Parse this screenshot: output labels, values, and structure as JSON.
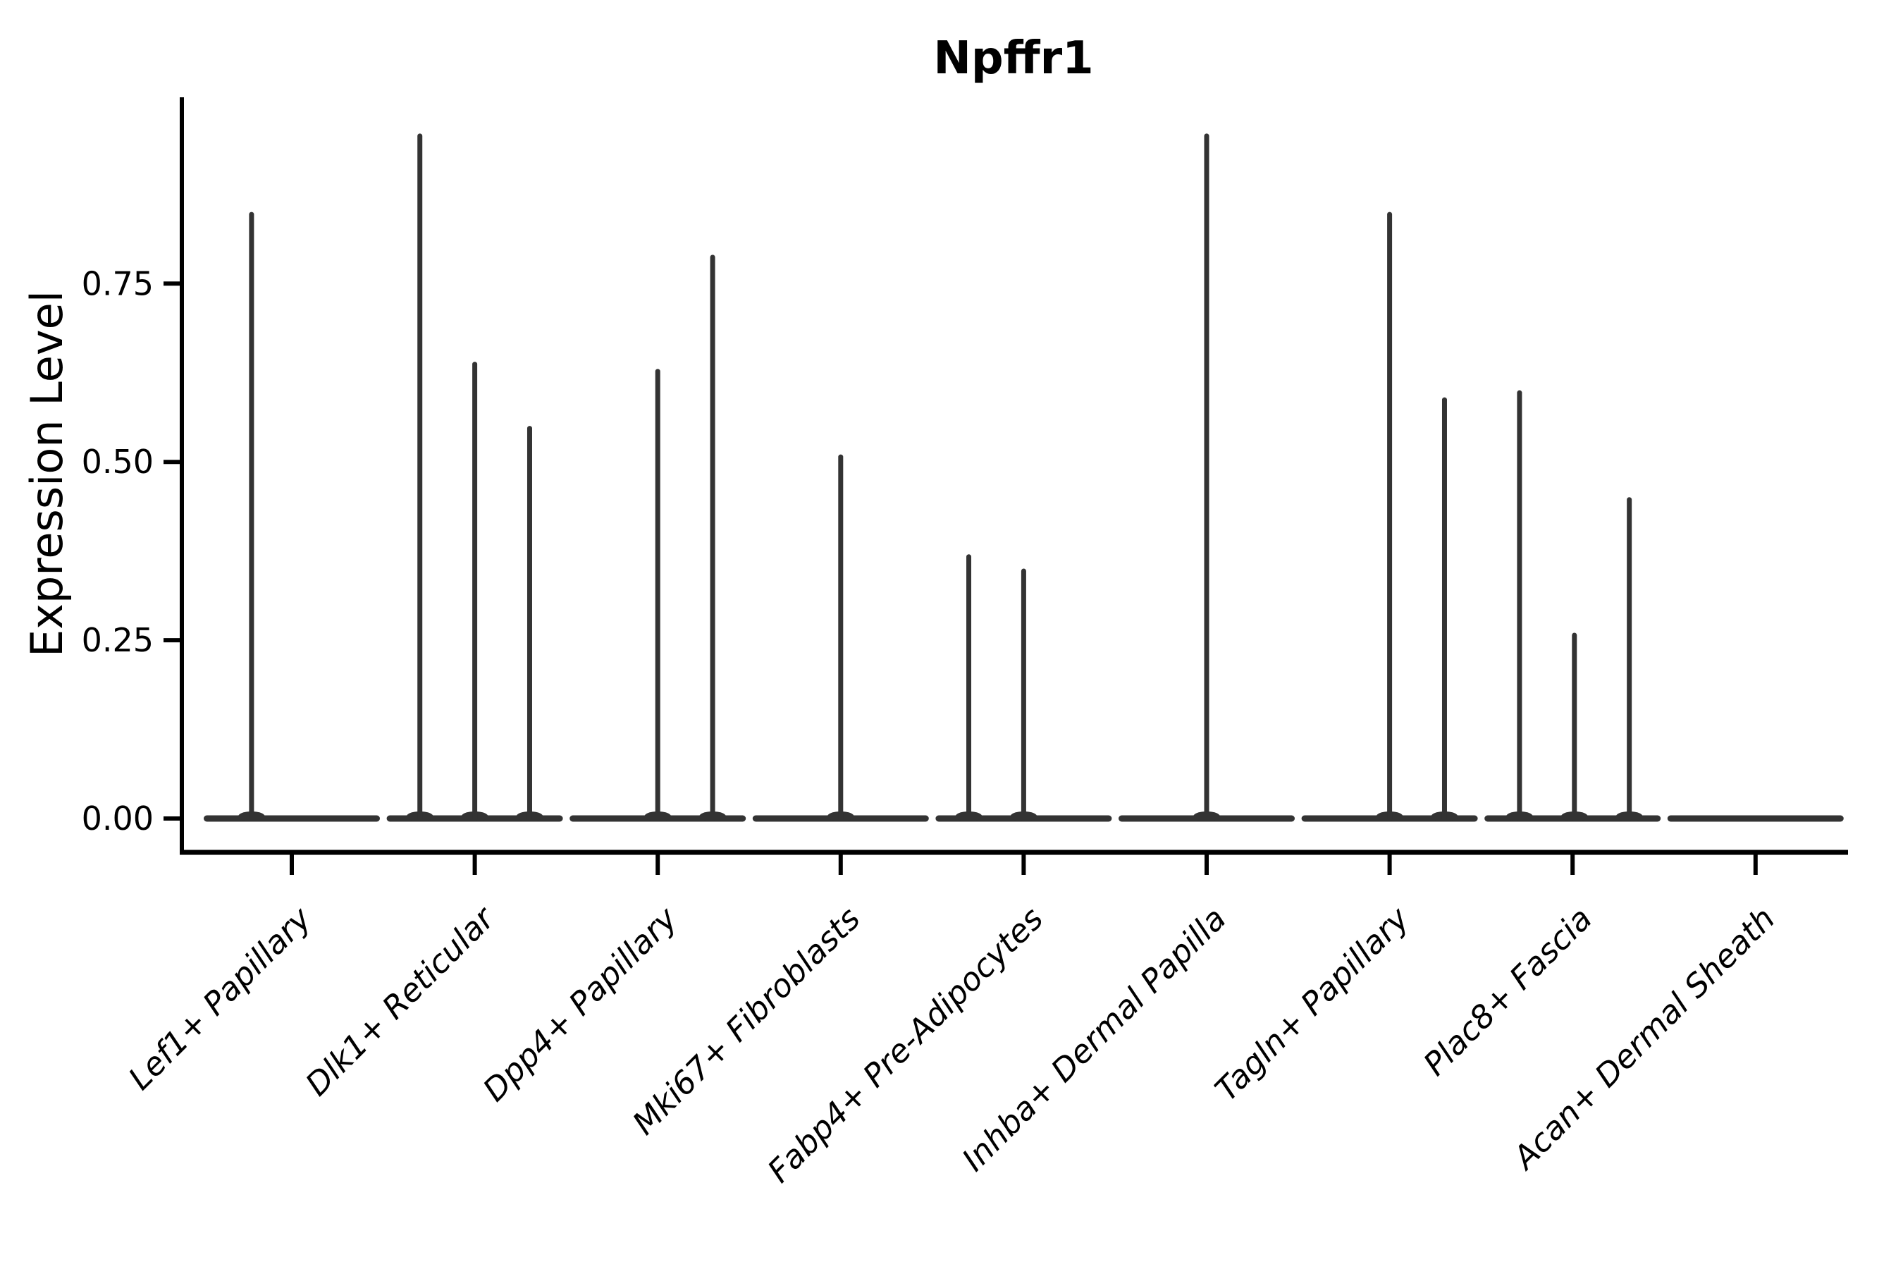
{
  "figure": {
    "background": "#ffffff",
    "ink_color": "#333333",
    "axis_color": "#000000"
  },
  "chart_data": {
    "type": "violin",
    "title": "Npffr1",
    "ylabel": "Expression Level",
    "xlabel": "",
    "ylim": [
      0,
      1.01
    ],
    "yticks": [
      0,
      0.25,
      0.5,
      0.75
    ],
    "ytick_labels": [
      "0.00",
      "0.25",
      "0.50",
      "0.75"
    ],
    "grid": false,
    "legend": null,
    "x_label_rotation_deg": 45,
    "categories": [
      "Lef1+ Papillary",
      "Dlk1+ Reticular",
      "Dpp4+ Papillary",
      "Mki67+ Fibroblasts",
      "Fabp4+ Pre-Adipocytes",
      "Inhba+ Dermal Papilla",
      "Tagln+ Papillary",
      "Plac8+ Fascia",
      "Acan+ Dermal Sheath"
    ],
    "violins": [
      {
        "category": "Lef1+ Papillary",
        "baseline_value": 0,
        "spikes": [
          {
            "offset": -0.22,
            "peak": 0.85
          }
        ]
      },
      {
        "category": "Dlk1+ Reticular",
        "baseline_value": 0,
        "spikes": [
          {
            "offset": -0.3,
            "peak": 0.96
          },
          {
            "offset": 0.0,
            "peak": 0.64
          },
          {
            "offset": 0.3,
            "peak": 0.55
          }
        ]
      },
      {
        "category": "Dpp4+ Papillary",
        "baseline_value": 0,
        "spikes": [
          {
            "offset": 0.0,
            "peak": 0.63
          },
          {
            "offset": 0.3,
            "peak": 0.79
          }
        ]
      },
      {
        "category": "Mki67+ Fibroblasts",
        "baseline_value": 0,
        "spikes": [
          {
            "offset": 0.0,
            "peak": 0.51
          }
        ]
      },
      {
        "category": "Fabp4+ Pre-Adipocytes",
        "baseline_value": 0,
        "spikes": [
          {
            "offset": -0.3,
            "peak": 0.37
          },
          {
            "offset": 0.0,
            "peak": 0.35
          }
        ]
      },
      {
        "category": "Inhba+ Dermal Papilla",
        "baseline_value": 0,
        "spikes": [
          {
            "offset": 0.0,
            "peak": 0.96
          }
        ]
      },
      {
        "category": "Tagln+ Papillary",
        "baseline_value": 0,
        "spikes": [
          {
            "offset": 0.0,
            "peak": 0.85
          },
          {
            "offset": 0.3,
            "peak": 0.59
          }
        ]
      },
      {
        "category": "Plac8+ Fascia",
        "baseline_value": 0,
        "spikes": [
          {
            "offset": -0.29,
            "peak": 0.6
          },
          {
            "offset": 0.01,
            "peak": 0.26
          },
          {
            "offset": 0.31,
            "peak": 0.45
          }
        ]
      },
      {
        "category": "Acan+ Dermal Sheath",
        "baseline_value": 0,
        "spikes": []
      }
    ]
  }
}
